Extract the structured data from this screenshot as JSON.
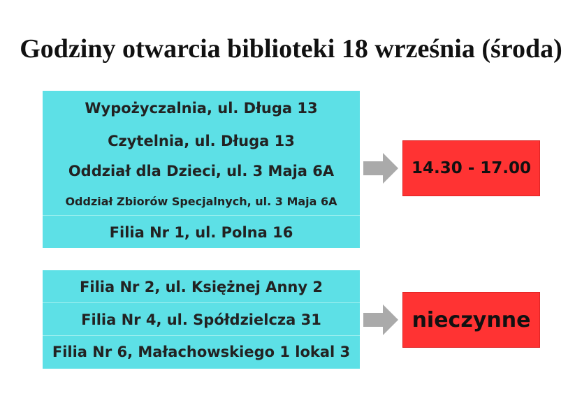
{
  "header": {
    "title": "Godziny otwarcia biblioteki 18 września (środa)"
  },
  "groups": [
    {
      "locations": [
        "Wypożyczalnia, ul. Długa 13",
        "Czytelnia, ul. Długa 13",
        "Oddział dla Dzieci, ul. 3 Maja 6A",
        "Oddział Zbiorów Specjalnych, ul. 3 Maja 6A",
        "Filia Nr 1, ul. Polna 16"
      ],
      "hours": "14.30 - 17.00"
    },
    {
      "locations": [
        "Filia Nr 2, ul. Księżnej Anny 2",
        "Filia Nr 4, ul. Spółdzielcza 31",
        "Filia Nr 6, Małachowskiego 1 lokal 3"
      ],
      "hours": "nieczynne"
    }
  ]
}
